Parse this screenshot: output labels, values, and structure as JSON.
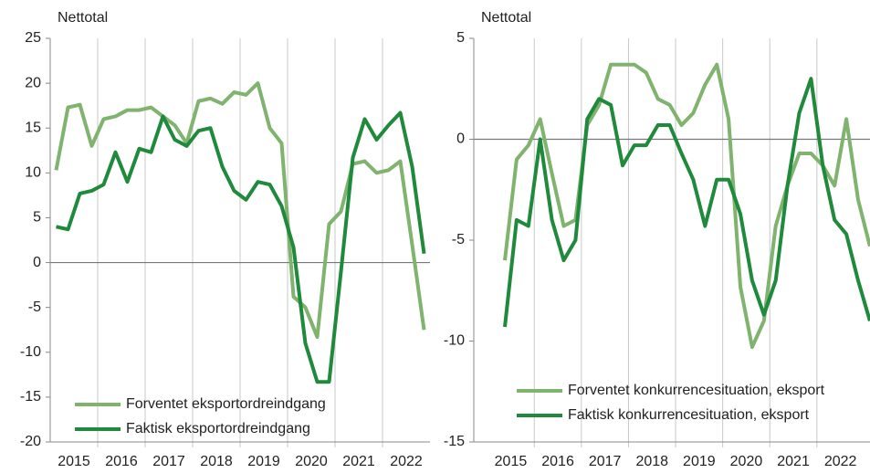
{
  "chart_data": [
    {
      "type": "line",
      "y_label": "Nettotal",
      "year_labels": [
        "2015",
        "2016",
        "2017",
        "2018",
        "2019",
        "2020",
        "2021",
        "2022"
      ],
      "x": [
        2015.125,
        2015.375,
        2015.625,
        2015.875,
        2016.125,
        2016.375,
        2016.625,
        2016.875,
        2017.125,
        2017.375,
        2017.625,
        2017.875,
        2018.125,
        2018.375,
        2018.625,
        2018.875,
        2019.125,
        2019.375,
        2019.625,
        2019.875,
        2020.125,
        2020.375,
        2020.625,
        2020.875,
        2021.125,
        2021.375,
        2021.625,
        2021.875,
        2022.125,
        2022.375,
        2022.625,
        2022.875
      ],
      "xlim": [
        2015,
        2023
      ],
      "xticks": [
        2016,
        2017,
        2018,
        2019,
        2020,
        2021,
        2022
      ],
      "ylim": [
        -20,
        25
      ],
      "yticks": [
        25,
        20,
        15,
        10,
        5,
        0,
        -5,
        -10,
        -15,
        -20
      ],
      "series": [
        {
          "name": "Forventet eksportordreindgang",
          "color": "#7fb36e",
          "values": [
            10.3,
            17.3,
            17.6,
            13,
            16,
            16.3,
            17,
            17,
            17.3,
            16.3,
            15.3,
            13.3,
            18,
            18.3,
            17.7,
            19,
            18.7,
            20,
            15,
            13.3,
            -3.8,
            -5,
            -8.3,
            4.3,
            5.7,
            11,
            11.3,
            10,
            10.3,
            11.3,
            2,
            -7.5
          ]
        },
        {
          "name": "Faktisk eksportordreindgang",
          "color": "#1f8a3c",
          "values": [
            4,
            3.7,
            7.7,
            8,
            8.7,
            12.3,
            9,
            12.7,
            12.3,
            16.3,
            13.7,
            13,
            14.7,
            15,
            10.7,
            8,
            7,
            9,
            8.7,
            6.3,
            1.7,
            -9,
            -13.3,
            -13.3,
            -1,
            11.7,
            16,
            13.7,
            15.3,
            16.7,
            10.7,
            1
          ]
        }
      ]
    },
    {
      "type": "line",
      "y_label": "Nettotal",
      "year_labels": [
        "2015",
        "2016",
        "2017",
        "2018",
        "2019",
        "2020",
        "2021",
        "2022"
      ],
      "x": [
        2015.375,
        2015.625,
        2015.875,
        2016.125,
        2016.375,
        2016.625,
        2016.875,
        2017.125,
        2017.375,
        2017.625,
        2017.875,
        2018.125,
        2018.375,
        2018.625,
        2018.875,
        2019.125,
        2019.375,
        2019.625,
        2019.875,
        2020.125,
        2020.375,
        2020.625,
        2020.875,
        2021.125,
        2021.375,
        2021.625,
        2021.875,
        2022.125,
        2022.375,
        2022.625,
        2022.875,
        2023.125
      ],
      "xlim": [
        2014.716,
        2023.127
      ],
      "xticks": [
        2016,
        2017,
        2018,
        2019,
        2020,
        2021,
        2022
      ],
      "ylim": [
        -15,
        5
      ],
      "yticks": [
        5,
        0,
        -5,
        -10,
        -15
      ],
      "series": [
        {
          "name": "Forventet konkurrencesituation, eksport",
          "color": "#7fb36e",
          "values": [
            -6,
            -1,
            -0.3,
            1,
            -1.7,
            -4.3,
            -4,
            0.7,
            1.7,
            3.7,
            3.7,
            3.7,
            3.3,
            2,
            1.7,
            0.7,
            1.3,
            2.7,
            3.7,
            1,
            -7.3,
            -10.3,
            -9,
            -4.3,
            -2.3,
            -0.7,
            -0.7,
            -1.3,
            -2.3,
            1,
            -3,
            -5.3
          ]
        },
        {
          "name": "Faktisk konkurrencesituation, eksport",
          "color": "#1f8a3c",
          "values": [
            -9.3,
            -4,
            -4.3,
            0,
            -4,
            -6,
            -5,
            1,
            2,
            1.7,
            -1.3,
            -0.3,
            -0.3,
            0.7,
            0.7,
            -0.7,
            -2,
            -4.3,
            -2,
            -2,
            -3.7,
            -7,
            -8.7,
            -7,
            -2.3,
            1.3,
            3,
            -1.3,
            -4,
            -4.7,
            -7,
            -9
          ]
        }
      ]
    }
  ]
}
